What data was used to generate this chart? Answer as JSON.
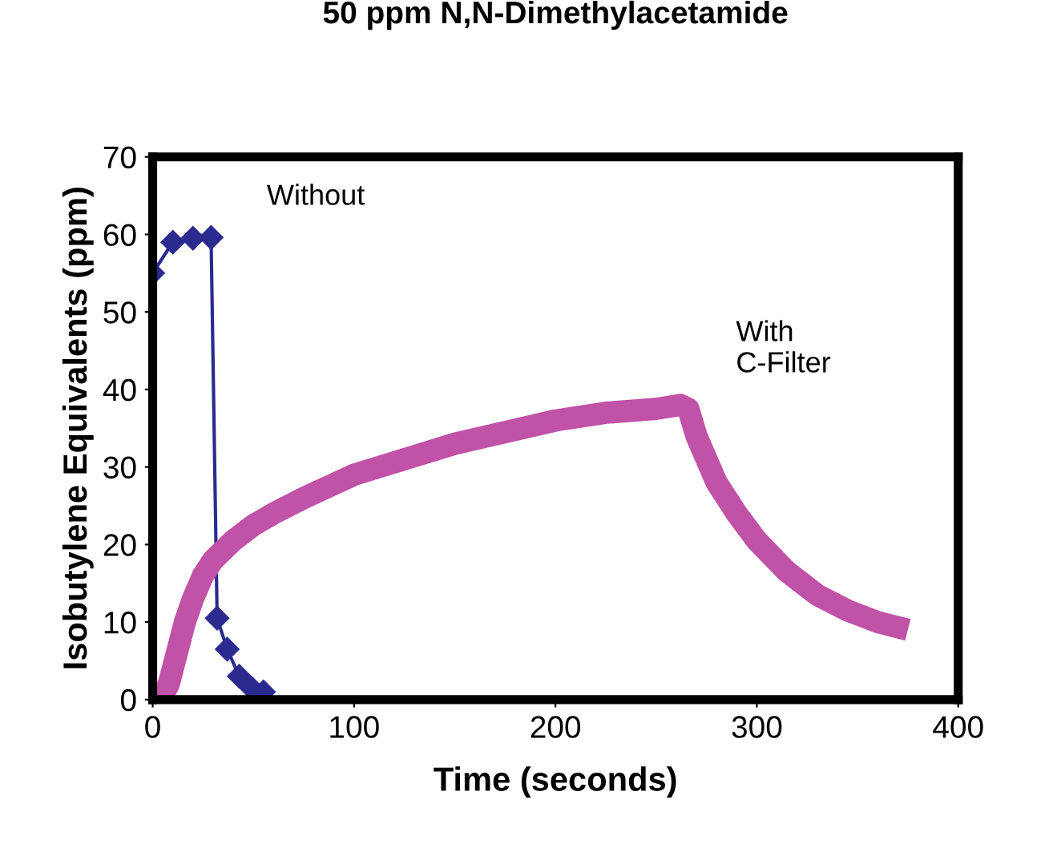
{
  "chart_data": {
    "type": "line",
    "title": "50 ppm N,N-Dimethylacetamide",
    "xlabel": "Time (seconds)",
    "ylabel": "Isobutylene Equivalents (ppm)",
    "xlim": [
      0,
      400
    ],
    "xticks": [
      0,
      100,
      200,
      300,
      400
    ],
    "ylim": [
      0,
      70
    ],
    "yticks": [
      0,
      10,
      20,
      30,
      40,
      50,
      60,
      70
    ],
    "grid": false,
    "legend": false,
    "series": [
      {
        "name": "Without",
        "color": "#2b2b8f",
        "marker": "diamond",
        "x": [
          0,
          10,
          20,
          29,
          32,
          37,
          43,
          49,
          55
        ],
        "values": [
          55,
          59,
          59.5,
          59.6,
          10.5,
          6.5,
          3,
          1.5,
          1
        ]
      },
      {
        "name": "With\nC-Filter",
        "color": "#c052a8",
        "marker": "none",
        "x": [
          0,
          5,
          8,
          12,
          16,
          20,
          25,
          30,
          40,
          50,
          60,
          75,
          100,
          125,
          150,
          175,
          200,
          225,
          250,
          262,
          266,
          270,
          275,
          280,
          290,
          300,
          315,
          330,
          345,
          360,
          375
        ],
        "values": [
          0,
          0.5,
          2,
          6,
          10,
          13,
          16,
          18,
          20.5,
          22.5,
          24,
          26,
          29,
          31,
          33,
          34.5,
          36,
          37,
          37.5,
          38,
          37.5,
          34,
          31,
          28,
          24,
          20.5,
          16.5,
          13.5,
          11.5,
          10,
          9
        ]
      }
    ]
  }
}
